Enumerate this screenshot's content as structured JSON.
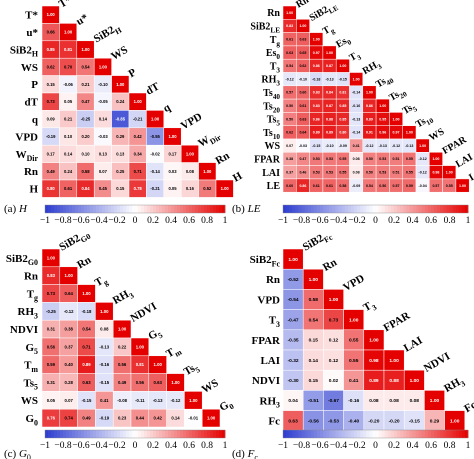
{
  "color_scale": {
    "neg": "#2c3ccf",
    "mid": "#ffffff",
    "pos": "#e50000",
    "min": -1,
    "max": 1
  },
  "chart_data": [
    {
      "type": "heatmap",
      "caption": "(a) H",
      "caption_prefix": "(a) ",
      "caption_var": "H",
      "labels": [
        "T*",
        "u*",
        "SiB2H",
        "WS",
        "P",
        "dT",
        "q",
        "VPD",
        "WDir",
        "Rn",
        "H"
      ],
      "display_labels": [
        {
          "main": "T*",
          "sub": ""
        },
        {
          "main": "u*",
          "sub": ""
        },
        {
          "main": "SiB2",
          "sub": "H"
        },
        {
          "main": "WS",
          "sub": ""
        },
        {
          "main": "P",
          "sub": ""
        },
        {
          "main": "dT",
          "sub": ""
        },
        {
          "main": "q",
          "sub": ""
        },
        {
          "main": "VPD",
          "sub": ""
        },
        {
          "main": "W",
          "sub": "Dir"
        },
        {
          "main": "Rn",
          "sub": ""
        },
        {
          "main": "H",
          "sub": ""
        }
      ],
      "matrix": [
        [
          1.0
        ],
        [
          0.66,
          1.0
        ],
        [
          0.85,
          0.81,
          1.0
        ],
        [
          0.62,
          0.7,
          0.54,
          1.0
        ],
        [
          0.15,
          -0.06,
          0.21,
          -0.1,
          1.0
        ],
        [
          0.73,
          0.05,
          0.47,
          -0.05,
          0.24,
          1.0
        ],
        [
          0.09,
          0.21,
          -0.25,
          0.14,
          -0.85,
          -0.21,
          1.0
        ],
        [
          -0.19,
          0.1,
          0.2,
          -0.03,
          0.29,
          0.42,
          -0.55,
          1.0
        ],
        [
          0.17,
          0.14,
          0.1,
          0.13,
          0.13,
          0.34,
          -0.02,
          0.17,
          1.0
        ],
        [
          0.49,
          0.24,
          0.58,
          0.07,
          0.25,
          0.71,
          -0.14,
          0.03,
          0.08,
          1.0
        ],
        [
          0.8,
          0.61,
          0.84,
          0.45,
          0.15,
          0.78,
          -0.21,
          0.05,
          0.16,
          0.52,
          1.0
        ]
      ],
      "colorbar_ticks": [
        "−1",
        "−0.8",
        "−0.6",
        "−0.4",
        "−0.2",
        "0",
        "0.2",
        "0.4",
        "0.6",
        "0.8",
        "1"
      ]
    },
    {
      "type": "heatmap",
      "caption": "(b) LE",
      "caption_prefix": "(b) ",
      "caption_var": "LE",
      "labels": [
        "Rn",
        "SiB2LE",
        "Tg",
        "Es0",
        "T3",
        "RH3",
        "Ts40",
        "Ts20",
        "Ts5",
        "Ts10",
        "WS",
        "FPAR",
        "LAI",
        "LE"
      ],
      "display_labels": [
        {
          "main": "Rn",
          "sub": ""
        },
        {
          "main": "SiB2",
          "sub": "LE"
        },
        {
          "main": "T",
          "sub": "g"
        },
        {
          "main": "Es",
          "sub": "0"
        },
        {
          "main": "T",
          "sub": "3"
        },
        {
          "main": "RH",
          "sub": "3"
        },
        {
          "main": "Ts",
          "sub": "40"
        },
        {
          "main": "Ts",
          "sub": "20"
        },
        {
          "main": "Ts",
          "sub": "5"
        },
        {
          "main": "Ts",
          "sub": "10"
        },
        {
          "main": "WS",
          "sub": ""
        },
        {
          "main": "FPAR",
          "sub": ""
        },
        {
          "main": "LAI",
          "sub": ""
        },
        {
          "main": "LE",
          "sub": ""
        }
      ],
      "matrix": [
        [
          1.0
        ],
        [
          0.83,
          1.0
        ],
        [
          0.61,
          0.63,
          1.0
        ],
        [
          0.63,
          0.65,
          0.97,
          1.0
        ],
        [
          0.54,
          0.62,
          0.86,
          0.87,
          1.0
        ],
        [
          -0.12,
          -0.1,
          -0.18,
          -0.13,
          -0.15,
          1.0
        ],
        [
          0.57,
          0.6,
          0.83,
          0.84,
          0.81,
          -0.14,
          1.0
        ],
        [
          0.5,
          0.61,
          0.83,
          0.87,
          0.85,
          -0.16,
          0.86,
          1.0
        ],
        [
          0.5,
          0.63,
          0.86,
          0.88,
          0.85,
          -0.13,
          0.89,
          0.95,
          1.0
        ],
        [
          0.62,
          0.64,
          0.89,
          0.89,
          0.8,
          -0.14,
          0.91,
          0.96,
          0.97,
          1.0
        ],
        [
          0.07,
          -0.03,
          -0.15,
          -0.1,
          -0.09,
          0.41,
          -0.12,
          -0.13,
          -0.12,
          -0.13,
          1.0
        ],
        [
          0.38,
          0.47,
          0.53,
          0.53,
          0.55,
          0.08,
          0.5,
          0.53,
          0.51,
          0.55,
          -0.12,
          1.0
        ],
        [
          0.37,
          0.46,
          0.53,
          0.53,
          0.55,
          0.08,
          0.5,
          0.53,
          0.51,
          0.55,
          -0.12,
          0.98,
          1.0
        ],
        [
          0.6,
          0.86,
          0.61,
          0.61,
          0.58,
          -0.09,
          0.54,
          0.56,
          0.57,
          0.59,
          -0.04,
          0.57,
          0.55,
          1.0
        ]
      ],
      "colorbar_ticks": [
        "−1",
        "−0.8",
        "−0.6",
        "−0.4",
        "−0.2",
        "0",
        "0.2",
        "0.4",
        "0.6",
        "0.8",
        "1"
      ]
    },
    {
      "type": "heatmap",
      "caption": "(c) G0",
      "caption_prefix": "(c) ",
      "caption_var": "G",
      "caption_sub": "0",
      "labels": [
        "SiB2G0",
        "Rn",
        "Tg",
        "RH3",
        "NDVI",
        "G5",
        "Tm",
        "Ts5",
        "WS",
        "G0"
      ],
      "display_labels": [
        {
          "main": "SiB2",
          "sub": "G0"
        },
        {
          "main": "Rn",
          "sub": ""
        },
        {
          "main": "T",
          "sub": "g"
        },
        {
          "main": "RH",
          "sub": "3"
        },
        {
          "main": "NDVI",
          "sub": ""
        },
        {
          "main": "G",
          "sub": "5"
        },
        {
          "main": "T",
          "sub": "m"
        },
        {
          "main": "Ts",
          "sub": "5"
        },
        {
          "main": "WS",
          "sub": ""
        },
        {
          "main": "G",
          "sub": "0"
        }
      ],
      "matrix": [
        [
          1.0
        ],
        [
          0.83,
          1.0
        ],
        [
          0.73,
          0.64,
          1.0
        ],
        [
          -0.25,
          -0.12,
          -0.18,
          1.0
        ],
        [
          0.31,
          0.38,
          0.54,
          0.08,
          1.0
        ],
        [
          0.56,
          0.37,
          0.71,
          -0.13,
          0.22,
          1.0
        ],
        [
          0.59,
          0.4,
          0.89,
          -0.16,
          0.56,
          0.81,
          1.0
        ],
        [
          0.31,
          0.28,
          0.63,
          -0.15,
          0.49,
          0.56,
          0.63,
          1.0
        ],
        [
          0.05,
          0.07,
          -0.15,
          0.41,
          -0.08,
          -0.11,
          -0.13,
          -0.12,
          1.0
        ],
        [
          0.76,
          0.74,
          0.49,
          -0.19,
          0.23,
          0.44,
          0.42,
          0.14,
          -0.01,
          1.0
        ]
      ],
      "colorbar_ticks": [
        "−1",
        "−0.8",
        "−0.6",
        "−0.4",
        "−0.2",
        "0",
        "0.2",
        "0.4",
        "0.6",
        "0.8",
        "1"
      ]
    },
    {
      "type": "heatmap",
      "caption": "(d) Fc",
      "caption_prefix": "(d) ",
      "caption_var": "F",
      "caption_sub": "c",
      "labels": [
        "SiB2Fc",
        "Rn",
        "VPD",
        "T3",
        "FPAR",
        "LAI",
        "NDVI",
        "RH3",
        "Fc"
      ],
      "display_labels": [
        {
          "main": "SiB2",
          "sub": "Fc"
        },
        {
          "main": "Rn",
          "sub": ""
        },
        {
          "main": "VPD",
          "sub": ""
        },
        {
          "main": "T",
          "sub": "3"
        },
        {
          "main": "FPAR",
          "sub": ""
        },
        {
          "main": "LAI",
          "sub": ""
        },
        {
          "main": "NDVI",
          "sub": ""
        },
        {
          "main": "RH",
          "sub": "3"
        },
        {
          "main": "Fc",
          "sub": ""
        }
      ],
      "matrix": [
        [
          1.0
        ],
        [
          -0.52,
          1.0
        ],
        [
          -0.54,
          0.58,
          1.0
        ],
        [
          -0.47,
          0.54,
          0.73,
          1.0
        ],
        [
          -0.35,
          0.15,
          0.12,
          0.55,
          1.0
        ],
        [
          -0.32,
          0.14,
          0.12,
          0.55,
          0.98,
          1.0
        ],
        [
          -0.3,
          0.15,
          0.02,
          0.41,
          0.89,
          0.88,
          1.0
        ],
        [
          0.04,
          -0.51,
          -0.67,
          -0.16,
          0.08,
          0.08,
          0.08,
          1.0
        ],
        [
          0.63,
          -0.56,
          -0.53,
          -0.4,
          -0.2,
          -0.2,
          -0.15,
          0.29,
          1.0
        ]
      ],
      "colorbar_ticks": [
        "−1",
        "−0.8",
        "−0.6",
        "−0.4",
        "−0.2",
        "0",
        "0.2",
        "0.4",
        "0.6",
        "0.8",
        "1"
      ]
    }
  ]
}
